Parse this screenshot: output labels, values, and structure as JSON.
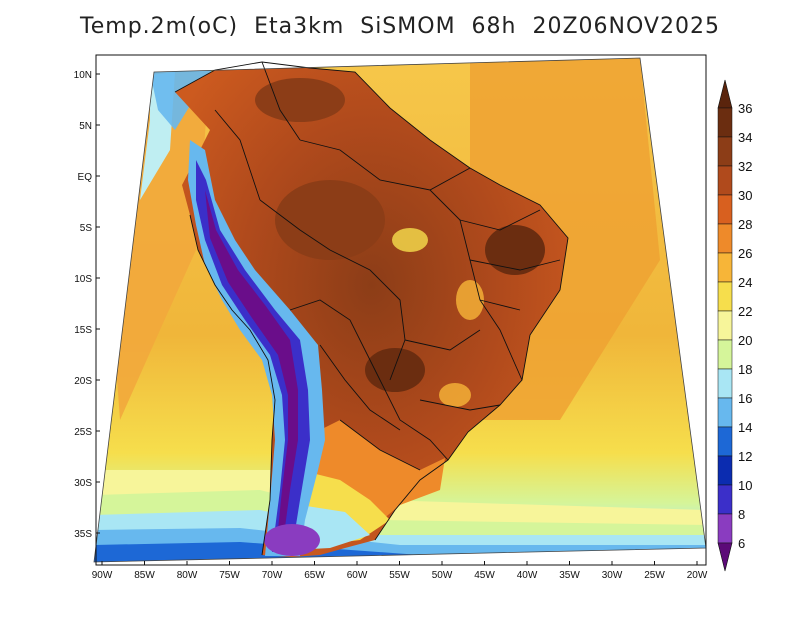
{
  "title": "Temp.2m(oC)  Eta3km  SiSMOM  68h  20Z06NOV2025",
  "map": {
    "lat_labels": [
      "10N",
      "5N",
      "EQ",
      "5S",
      "10S",
      "15S",
      "20S",
      "25S",
      "30S",
      "35S"
    ],
    "lon_labels": [
      "90W",
      "85W",
      "80W",
      "75W",
      "70W",
      "65W",
      "60W",
      "55W",
      "50W",
      "45W",
      "40W",
      "35W",
      "30W",
      "25W",
      "20W"
    ]
  },
  "colorbar": {
    "labels": [
      "36",
      "34",
      "32",
      "30",
      "28",
      "26",
      "24",
      "22",
      "20",
      "18",
      "16",
      "14",
      "12",
      "10",
      "8",
      "6"
    ],
    "colors": [
      "#6b2d10",
      "#8c3d17",
      "#b04a1c",
      "#d8601f",
      "#ee8a2a",
      "#f7b538",
      "#f6de4c",
      "#f7f59a",
      "#d5f59a",
      "#a9e6f4",
      "#67b8ee",
      "#1d68d6",
      "#0b2cb0",
      "#3b2fc9",
      "#8a3cc0",
      "#6a0d8a"
    ],
    "top_arrow_color": "#5a240c",
    "bottom_arrow_color": "#5c0a78"
  }
}
